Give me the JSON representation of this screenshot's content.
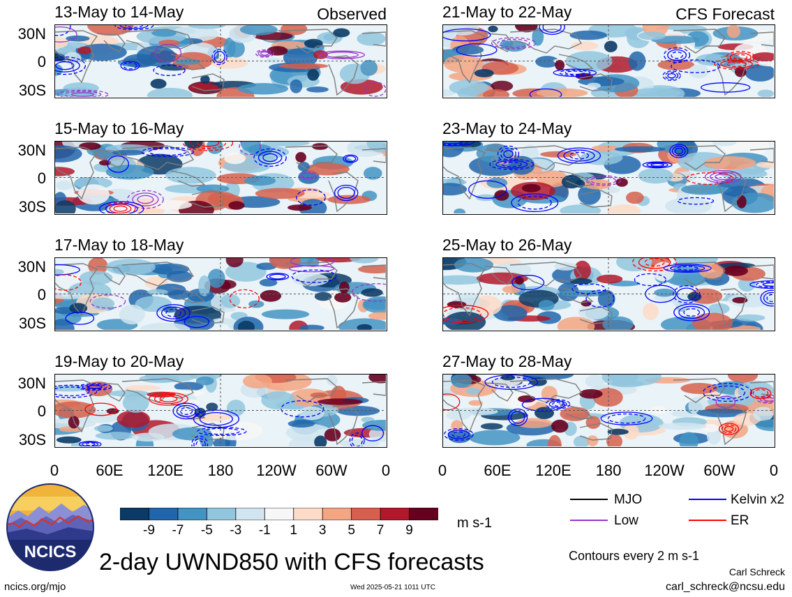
{
  "header": {
    "observed_label": "Observed",
    "forecast_label": "CFS Forecast"
  },
  "panels_left": [
    {
      "title": "13-May to 14-May"
    },
    {
      "title": "15-May to 16-May"
    },
    {
      "title": "17-May to 18-May"
    },
    {
      "title": "19-May to 20-May"
    }
  ],
  "panels_right": [
    {
      "title": "21-May to 22-May"
    },
    {
      "title": "23-May to 24-May"
    },
    {
      "title": "25-May to 26-May"
    },
    {
      "title": "27-May to 28-May"
    }
  ],
  "lat_labels": [
    "30N",
    "0",
    "30S"
  ],
  "lon_labels": [
    "0",
    "60E",
    "120E",
    "180",
    "120W",
    "60W",
    "0"
  ],
  "colorbar": {
    "unit": "m s-1",
    "ticks": [
      "-9",
      "-7",
      "-5",
      "-3",
      "-1",
      "1",
      "3",
      "5",
      "7",
      "9"
    ],
    "colors": [
      "#0b3a66",
      "#2166ac",
      "#4393c3",
      "#92c5de",
      "#d1e5f0",
      "#f7f7f7",
      "#fddbc7",
      "#f4a582",
      "#d6604d",
      "#b2182b",
      "#67001f"
    ]
  },
  "legend": {
    "items": [
      {
        "label": "MJO",
        "color": "#000000"
      },
      {
        "label": "Kelvin x2",
        "color": "#0000ff"
      },
      {
        "label": "Low",
        "color": "#9932cc"
      },
      {
        "label": "ER",
        "color": "#ff0000"
      }
    ],
    "contour_note": "Contours every 2 m s-1"
  },
  "logo": {
    "text": "NCICS"
  },
  "footer": {
    "main_title": "2-day UWND850 with CFS forecasts",
    "author": "Carl Schreck",
    "email": "carl_schreck@ncsu.edu",
    "url": "ncics.org/mjo",
    "timestamp": "Wed 2025-05-21 1011 UTC"
  }
}
